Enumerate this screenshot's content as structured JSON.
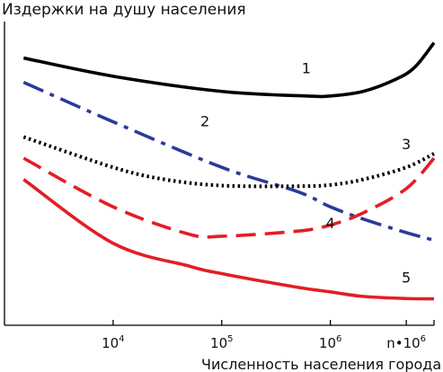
{
  "chart_data": {
    "type": "line",
    "ylabel": "Издержки на душу населения",
    "xlabel": "Численность населения города",
    "xscale": "log",
    "xlim": [
      1000,
      9000000
    ],
    "ylim": [
      0,
      100
    ],
    "grid": false,
    "ticks": [
      {
        "value": 10000,
        "base": "10",
        "exp": "4"
      },
      {
        "value": 100000,
        "base": "10",
        "exp": "5"
      },
      {
        "value": 1000000,
        "base": "10",
        "exp": "6"
      },
      {
        "value": 5000000,
        "base": "n•10",
        "exp": "6"
      },
      {
        "value": 9000000,
        "base": "",
        "exp": ""
      }
    ],
    "series": [
      {
        "name": "1",
        "color": "#000000",
        "style": "solid",
        "label_at": 600000,
        "label_y": 83,
        "x": [
          1500,
          10000,
          100000,
          600000,
          1000000,
          2000000,
          4000000,
          6000000,
          9000000
        ],
        "y": [
          88,
          82,
          77,
          75.5,
          75.5,
          77,
          81,
          85,
          93
        ]
      },
      {
        "name": "2",
        "color": "#2b3a99",
        "style": "dashdot",
        "label_at": 70000,
        "label_y": 65.5,
        "x": [
          1500,
          10000,
          100000,
          500000,
          1000000,
          2000000,
          5000000,
          9000000
        ],
        "y": [
          80,
          67,
          52,
          44,
          39,
          35,
          30.5,
          28
        ]
      },
      {
        "name": "3",
        "color": "#000000",
        "style": "dotted",
        "label_at": 5000000,
        "label_y": 58,
        "x": [
          1500,
          10000,
          30000,
          100000,
          500000,
          1000000,
          2000000,
          5000000,
          9000000
        ],
        "y": [
          62,
          52,
          48,
          46,
          45.8,
          46.2,
          48,
          52,
          56.5
        ]
      },
      {
        "name": "4",
        "color": "#e31e24",
        "style": "dashed",
        "label_at": 1000000,
        "label_y": 32,
        "x": [
          1500,
          10000,
          50000,
          100000,
          500000,
          1000000,
          2000000,
          5000000,
          9000000
        ],
        "y": [
          55,
          39,
          30,
          29.3,
          31,
          33,
          37,
          45,
          55
        ]
      },
      {
        "name": "5",
        "color": "#e31e24",
        "style": "solid",
        "label_at": 5000000,
        "label_y": 14,
        "x": [
          1500,
          10000,
          50000,
          100000,
          500000,
          1000000,
          2000000,
          5000000,
          9000000
        ],
        "y": [
          48,
          27,
          19.5,
          17,
          12.5,
          11,
          9.5,
          8.8,
          8.7
        ]
      }
    ]
  }
}
